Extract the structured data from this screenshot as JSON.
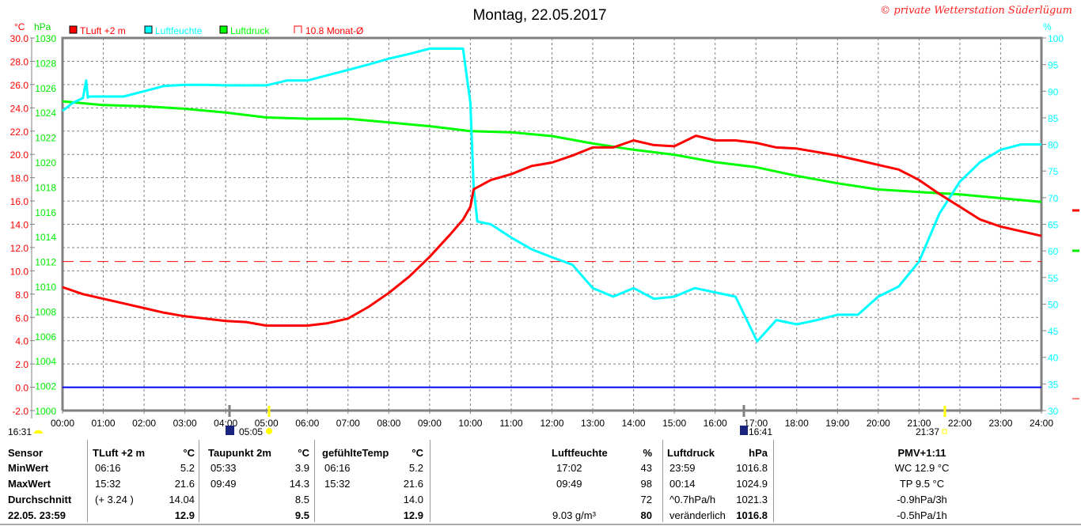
{
  "title": "Montag, 22.05.2017",
  "copyright": "© private Wetterstation Süderlügum",
  "colors": {
    "temp": "#ff0000",
    "humidity": "#00ffff",
    "pressure": "#00ff00",
    "zero_line": "#0000ff",
    "grid": "#808080"
  },
  "chart_data": {
    "type": "line",
    "title": "Montag, 22.05.2017",
    "x_range_hours": [
      0,
      24
    ],
    "x_tick_labels": [
      "00:00",
      "01:00",
      "02:00",
      "03:00",
      "04:00",
      "05:00",
      "06:00",
      "07:00",
      "08:00",
      "09:00",
      "10:00",
      "11:00",
      "12:00",
      "13:00",
      "14:00",
      "15:00",
      "16:00",
      "17:00",
      "18:00",
      "19:00",
      "20:00",
      "21:00",
      "22:00",
      "23:00",
      "24:00"
    ],
    "axes": {
      "temp": {
        "unit": "°C",
        "range": [
          -2,
          30
        ],
        "ticks": [
          "30.0",
          "28.0",
          "26.0",
          "24.0",
          "22.0",
          "20.0",
          "18.0",
          "16.0",
          "14.0",
          "12.0",
          "10.0",
          "8.0",
          "6.0",
          "4.0",
          "2.0",
          "0.0",
          "-2.0"
        ]
      },
      "pressure": {
        "unit": "hPa",
        "range": [
          1000,
          1030
        ],
        "ticks": [
          "1030",
          "1028",
          "1026",
          "1024",
          "1022",
          "1020",
          "1018",
          "1016",
          "1014",
          "1012",
          "1010",
          "1008",
          "1006",
          "1004",
          "1002",
          "1000"
        ]
      },
      "humidity": {
        "unit": "%",
        "range": [
          30,
          100
        ],
        "ticks": [
          "100",
          "95",
          "90",
          "85",
          "80",
          "75",
          "70",
          "65",
          "60",
          "55",
          "50",
          "45",
          "40",
          "35",
          "30"
        ]
      }
    },
    "grid": true,
    "legend": [
      {
        "label": "TLuft +2 m",
        "color": "#ff0000"
      },
      {
        "label": "Luftfeuchte",
        "color": "#00ffff"
      },
      {
        "label": "Luftdruck",
        "color": "#00ff00"
      },
      {
        "label": "10.8 Monat-Ø",
        "color": "#ff0000"
      }
    ],
    "reference_line": {
      "name": "Monat-Ø",
      "value": 10.8
    },
    "series": [
      {
        "name": "TLuft +2 m",
        "axis": "temp",
        "x": [
          0,
          0.5,
          1,
          1.5,
          2,
          2.5,
          3,
          3.5,
          4,
          4.5,
          5,
          5.5,
          6,
          6.5,
          7,
          7.5,
          8,
          8.5,
          9,
          9.5,
          9.82,
          10,
          10.08,
          10.5,
          11,
          11.5,
          12,
          12.5,
          13,
          13.5,
          14,
          14.5,
          15,
          15.53,
          16,
          16.5,
          17,
          17.5,
          18,
          18.5,
          19,
          19.5,
          20,
          20.5,
          21,
          21.5,
          22,
          22.5,
          23,
          23.5,
          24
        ],
        "y": [
          8.6,
          8.0,
          7.6,
          7.2,
          6.8,
          6.4,
          6.1,
          5.9,
          5.7,
          5.6,
          5.3,
          5.3,
          5.3,
          5.5,
          5.9,
          6.9,
          8.1,
          9.5,
          11.2,
          13.1,
          14.4,
          15.5,
          17.0,
          17.8,
          18.3,
          19.0,
          19.3,
          19.9,
          20.6,
          20.6,
          21.2,
          20.8,
          20.7,
          21.6,
          21.2,
          21.2,
          21.0,
          20.6,
          20.5,
          20.2,
          19.9,
          19.5,
          19.1,
          18.7,
          17.8,
          16.6,
          15.5,
          14.4,
          13.8,
          13.4,
          13.0
        ]
      },
      {
        "name": "Luftfeuchte",
        "axis": "humidity",
        "x": [
          0,
          0.25,
          0.5,
          0.58,
          0.62,
          0.66,
          1,
          1.5,
          2,
          2.5,
          3,
          3.5,
          4,
          5,
          5.5,
          6,
          6.5,
          7,
          7.5,
          8,
          8.5,
          9,
          9.82,
          10,
          10.08,
          10.17,
          10.5,
          11,
          11.5,
          12,
          12.5,
          13,
          13.5,
          14,
          14.5,
          15,
          15.5,
          16,
          16.5,
          17.03,
          17.5,
          18,
          18.5,
          19,
          19.5,
          20,
          20.5,
          21,
          21.5,
          22,
          22.5,
          23,
          23.5,
          24
        ],
        "y": [
          86.3,
          87.8,
          88.7,
          92,
          88.8,
          89,
          89,
          89,
          90,
          91,
          91.2,
          91.2,
          91.1,
          91.1,
          92,
          92,
          93,
          94,
          95,
          96.1,
          97,
          98,
          98,
          87.8,
          72,
          65.5,
          65,
          62.5,
          60.3,
          58.8,
          57.4,
          53,
          51.4,
          53,
          51,
          51.4,
          53,
          52.2,
          51.4,
          43,
          47,
          46.2,
          47,
          48,
          48,
          51.4,
          53.3,
          58,
          67,
          73,
          76.7,
          79,
          80,
          80
        ]
      },
      {
        "name": "Luftdruck",
        "axis": "pressure",
        "x": [
          0,
          1,
          2,
          3,
          4,
          5,
          6,
          7,
          8,
          9,
          10,
          11,
          12,
          13,
          14,
          15,
          16,
          17,
          18,
          19,
          20,
          21,
          22,
          23,
          24
        ],
        "y": [
          1024.9,
          1024.6,
          1024.5,
          1024.3,
          1024.0,
          1023.6,
          1023.5,
          1023.5,
          1023.2,
          1022.9,
          1022.5,
          1022.4,
          1022.1,
          1021.5,
          1021.0,
          1020.6,
          1020.0,
          1019.6,
          1018.9,
          1018.3,
          1017.8,
          1017.6,
          1017.4,
          1017.1,
          1016.8
        ]
      }
    ],
    "events": {
      "moon_left": "16:31",
      "moonrise": "05:05",
      "moonset": "16:41",
      "sunset": "21:37"
    }
  },
  "table": {
    "row_labels": [
      "Sensor",
      "MinWert",
      "MaxWert",
      "Durchschnitt",
      "22.05. 23:59"
    ],
    "tluft": {
      "header": "TLuft +2 m",
      "unit": "°C",
      "times": [
        "06:16",
        "15:32",
        "(+ 3.24 )",
        ""
      ],
      "values": [
        "5.2",
        "21.6",
        "14.04",
        "12.9"
      ]
    },
    "taupunkt": {
      "header": "Taupunkt 2m",
      "unit": "°C",
      "times": [
        "05:33",
        "09:49",
        "",
        ""
      ],
      "values": [
        "3.9",
        "14.3",
        "8.5",
        "9.5"
      ]
    },
    "gefuehlt": {
      "header": "gefühlteTemp",
      "unit": "°C",
      "times": [
        "06:16",
        "15:32",
        "",
        ""
      ],
      "values": [
        "5.2",
        "21.6",
        "14.0",
        "12.9"
      ]
    },
    "feuchte": {
      "header": "Luftfeuchte",
      "unit": "%",
      "times": [
        "17:02",
        "09:49",
        "",
        "9.03 g/m³"
      ],
      "values": [
        "43",
        "98",
        "72",
        "80"
      ]
    },
    "druck": {
      "header": "Luftdruck",
      "unit": "hPa",
      "times": [
        "23:59",
        "00:14",
        "^0.7hPa/h",
        "veränderlich"
      ],
      "values": [
        "1016.8",
        "1024.9",
        "1021.3",
        "1016.8"
      ]
    },
    "pmv": {
      "header": "PMV+1:11",
      "lines": [
        "WC 12.9 °C",
        "TP 9.5 °C",
        "-0.9hPa/3h",
        "-0.5hPa/1h"
      ]
    }
  }
}
